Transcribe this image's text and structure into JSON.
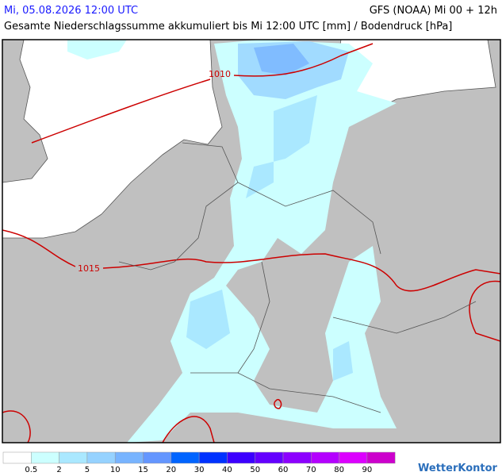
{
  "header": {
    "date": "Mi, 05.08.2026 12:00 UTC",
    "model": "GFS (NOAA) Mi 00 + 12h",
    "title": "Gesamte Niederschlagssumme akkumuliert bis Mi 12:00 UTC [mm] / Bodendruck [hPa]"
  },
  "map": {
    "isobars": [
      "1010",
      "1015"
    ]
  },
  "legend": {
    "colors": [
      "#ffffff",
      "#ccffff",
      "#aae8ff",
      "#96d2ff",
      "#78b4ff",
      "#6496ff",
      "#0064ff",
      "#0032ff",
      "#3c00ff",
      "#6400ff",
      "#8c00ff",
      "#b400ff",
      "#dc00ff",
      "#cc00cc"
    ],
    "labels": [
      "0.5",
      "2",
      "5",
      "10",
      "15",
      "20",
      "30",
      "40",
      "50",
      "60",
      "70",
      "80",
      "90"
    ]
  },
  "logo": "WetterKontor"
}
